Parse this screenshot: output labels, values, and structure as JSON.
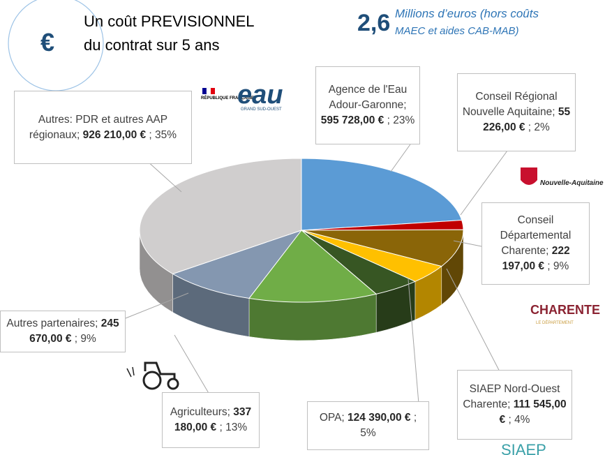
{
  "header": {
    "icon": "€",
    "title_lines": [
      "Un coût PREVISIONNEL",
      "du contrat sur 5 ans"
    ],
    "total": "2,6",
    "total_lines": [
      "Millions d’euros (hors coûts",
      "MAEC et aides CAB-MAB)"
    ]
  },
  "logos": {
    "republique": "RÉPUBLIQUE FRANÇAISE",
    "eau": "GRAND SUD-OUEST",
    "region": "Nouvelle-Aquitaine",
    "charente": "CHARENTE",
    "departement": "LE DÉPARTEMENT",
    "siaep": "SIAEP"
  },
  "chart_data": {
    "type": "pie3d",
    "categories": [
      "Agence de l'Eau Adour-Garonne;",
      "Conseil Régional Nouvelle Aquitaine;",
      "Conseil Départemental Charente;",
      "SIAEP Nord-Ouest Charente;",
      "OPA;",
      "Agriculteurs;",
      "Autres partenaires;",
      "Autres: PDR et autres AAP régionaux;"
    ],
    "values": [
      595728,
      55226,
      222197,
      111545,
      124390,
      337180,
      245670,
      926210
    ],
    "value_labels": [
      "595 728,00 €",
      "55 226,00 €",
      "222 197,00 €",
      "111 545,00 €",
      "124 390,00 €",
      "337 180,00 €",
      "245 670,00 €",
      "926 210,00 €"
    ],
    "percents": [
      23,
      2,
      9,
      4,
      5,
      13,
      9,
      35
    ],
    "percent_labels": [
      "23%",
      "2%",
      "9%",
      "4%",
      "5%",
      "13%",
      "9%",
      "35%"
    ],
    "colors": [
      "#5b9bd5",
      "#c00000",
      "#8a6508",
      "#ffc000",
      "#375623",
      "#70ad47",
      "#8497b0",
      "#d0cece"
    ]
  }
}
